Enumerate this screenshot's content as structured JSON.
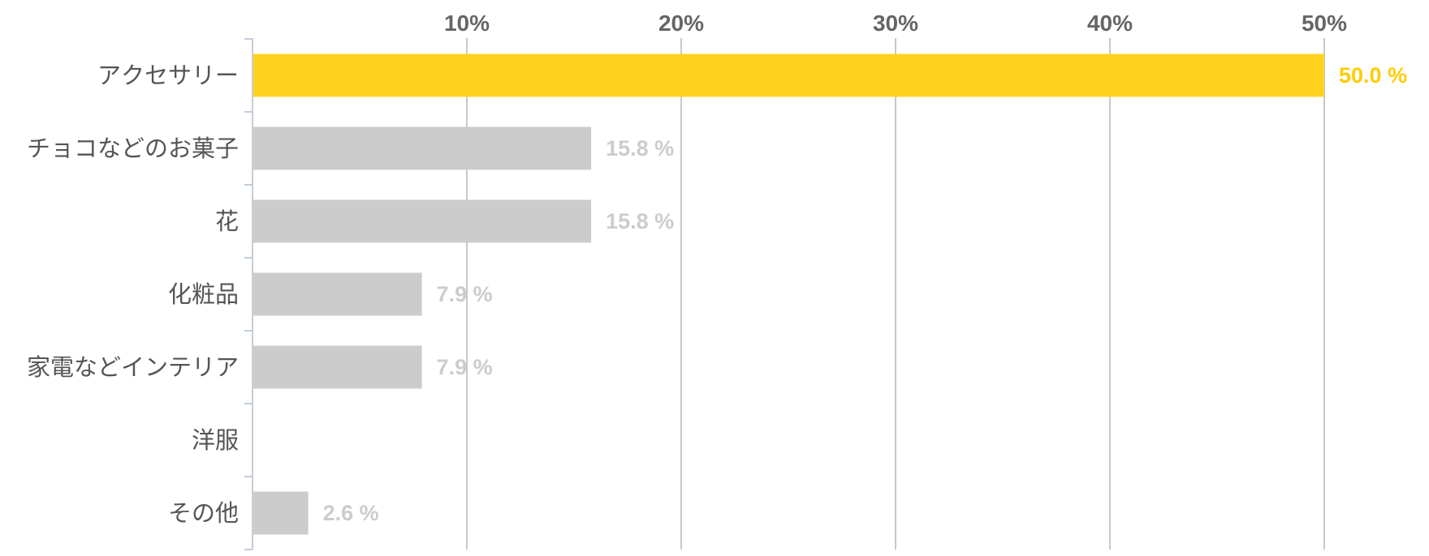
{
  "chart_data": {
    "type": "bar",
    "orientation": "horizontal",
    "categories": [
      "アクセサリー",
      "チョコなどのお菓子",
      "花",
      "化粧品",
      "家電などインテリア",
      "洋服",
      "その他"
    ],
    "values": [
      50.0,
      15.8,
      15.8,
      7.9,
      7.9,
      0,
      2.6
    ],
    "value_labels": [
      "50.0 %",
      "15.8 %",
      "15.8 %",
      "7.9 %",
      "7.9 %",
      "",
      "2.6 %"
    ],
    "xlim": [
      0,
      50
    ],
    "xticks": [
      10,
      20,
      30,
      40,
      50
    ],
    "xtick_labels": [
      "10%",
      "20%",
      "30%",
      "40%",
      "50%"
    ],
    "axis_position": "top",
    "grid": true,
    "title": "",
    "xlabel": "",
    "ylabel": "",
    "colors": {
      "highlight": "#FFD21E",
      "bar": "#CCCCCC",
      "highlight_label": "#FFCC00",
      "label": "#CCCCCC",
      "grid": "#C8C8C8",
      "axis": "#C5CCD8",
      "tick_text": "#666666",
      "category_text": "#555555"
    },
    "highlight_index": 0
  }
}
